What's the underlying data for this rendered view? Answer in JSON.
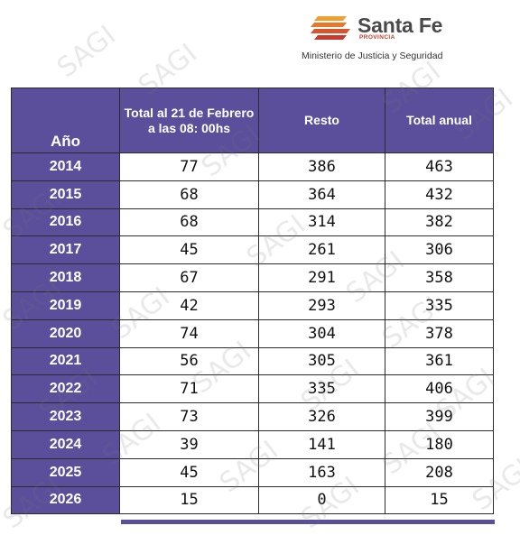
{
  "header": {
    "brand_name": "Santa Fe",
    "brand_sub": "PROVINCIA",
    "ministry": "Ministerio de Justicia y Seguridad"
  },
  "watermark": "SAGI",
  "table": {
    "headers": {
      "year": "Año",
      "col_a": "Total al 21 de Febrero a las 08: 00hs",
      "col_b": "Resto",
      "col_c": "Total anual"
    },
    "rows": [
      {
        "year": "2014",
        "a": "77",
        "b": "386",
        "c": "463"
      },
      {
        "year": "2015",
        "a": "68",
        "b": "364",
        "c": "432"
      },
      {
        "year": "2016",
        "a": "68",
        "b": "314",
        "c": "382"
      },
      {
        "year": "2017",
        "a": "45",
        "b": "261",
        "c": "306"
      },
      {
        "year": "2018",
        "a": "67",
        "b": "291",
        "c": "358"
      },
      {
        "year": "2019",
        "a": "42",
        "b": "293",
        "c": "335"
      },
      {
        "year": "2020",
        "a": "74",
        "b": "304",
        "c": "378"
      },
      {
        "year": "2021",
        "a": "56",
        "b": "305",
        "c": "361"
      },
      {
        "year": "2022",
        "a": "71",
        "b": "335",
        "c": "406"
      },
      {
        "year": "2023",
        "a": "73",
        "b": "326",
        "c": "399"
      },
      {
        "year": "2024",
        "a": "39",
        "b": "141",
        "c": "180"
      },
      {
        "year": "2025",
        "a": "45",
        "b": "163",
        "c": "208"
      },
      {
        "year": "2026",
        "a": "15",
        "b": "0",
        "c": "15"
      }
    ]
  },
  "colors": {
    "header_bg": "#5b4f9c",
    "logo_orange": "#e8772b",
    "logo_red": "#c83a2b"
  }
}
